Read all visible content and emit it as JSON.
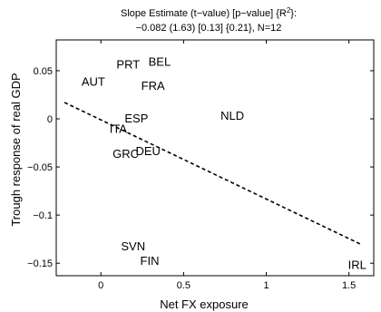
{
  "chart_data": {
    "type": "scatter",
    "title_line1": "Slope Estimate (t−value) [p−value] {R",
    "title_sup": "2",
    "title_line1_end": "}:",
    "title_line2": "−0.082 (1.63) [0.13] {0.21}, N=12",
    "xlabel": "Net FX exposure",
    "ylabel": "Trough response of real GDP",
    "xlim": [
      -0.27,
      1.65
    ],
    "ylim": [
      -0.163,
      0.082
    ],
    "xticks": [
      {
        "value": 0,
        "label": "0"
      },
      {
        "value": 0.5,
        "label": "0.5"
      },
      {
        "value": 1,
        "label": "1"
      },
      {
        "value": 1.5,
        "label": "1.5"
      }
    ],
    "yticks": [
      {
        "value": 0.05,
        "label": "0.05"
      },
      {
        "value": 0,
        "label": "0"
      },
      {
        "value": -0.05,
        "label": "−0.05"
      },
      {
        "value": -0.1,
        "label": "−0.1"
      },
      {
        "value": -0.15,
        "label": "−0.15"
      }
    ],
    "points": [
      {
        "label": "PRT",
        "x": 0.165,
        "y": 0.057
      },
      {
        "label": "BEL",
        "x": 0.355,
        "y": 0.06
      },
      {
        "label": "AUT",
        "x": -0.046,
        "y": 0.039
      },
      {
        "label": "FRA",
        "x": 0.315,
        "y": 0.035
      },
      {
        "label": "NLD",
        "x": 0.795,
        "y": 0.004
      },
      {
        "label": "ESP",
        "x": 0.215,
        "y": 0.001
      },
      {
        "label": "ITA",
        "x": 0.105,
        "y": -0.01
      },
      {
        "label": "GRC",
        "x": 0.15,
        "y": -0.036
      },
      {
        "label": "DEU",
        "x": 0.285,
        "y": -0.033
      },
      {
        "label": "SVN",
        "x": 0.195,
        "y": -0.132
      },
      {
        "label": "FIN",
        "x": 0.295,
        "y": -0.147
      },
      {
        "label": "IRL",
        "x": 1.55,
        "y": -0.151
      }
    ],
    "fit_line": {
      "x1": -0.22,
      "y1": 0.017,
      "x2": 1.58,
      "y2": -0.131,
      "style": "dashed"
    },
    "grid": false,
    "legend": "none"
  }
}
